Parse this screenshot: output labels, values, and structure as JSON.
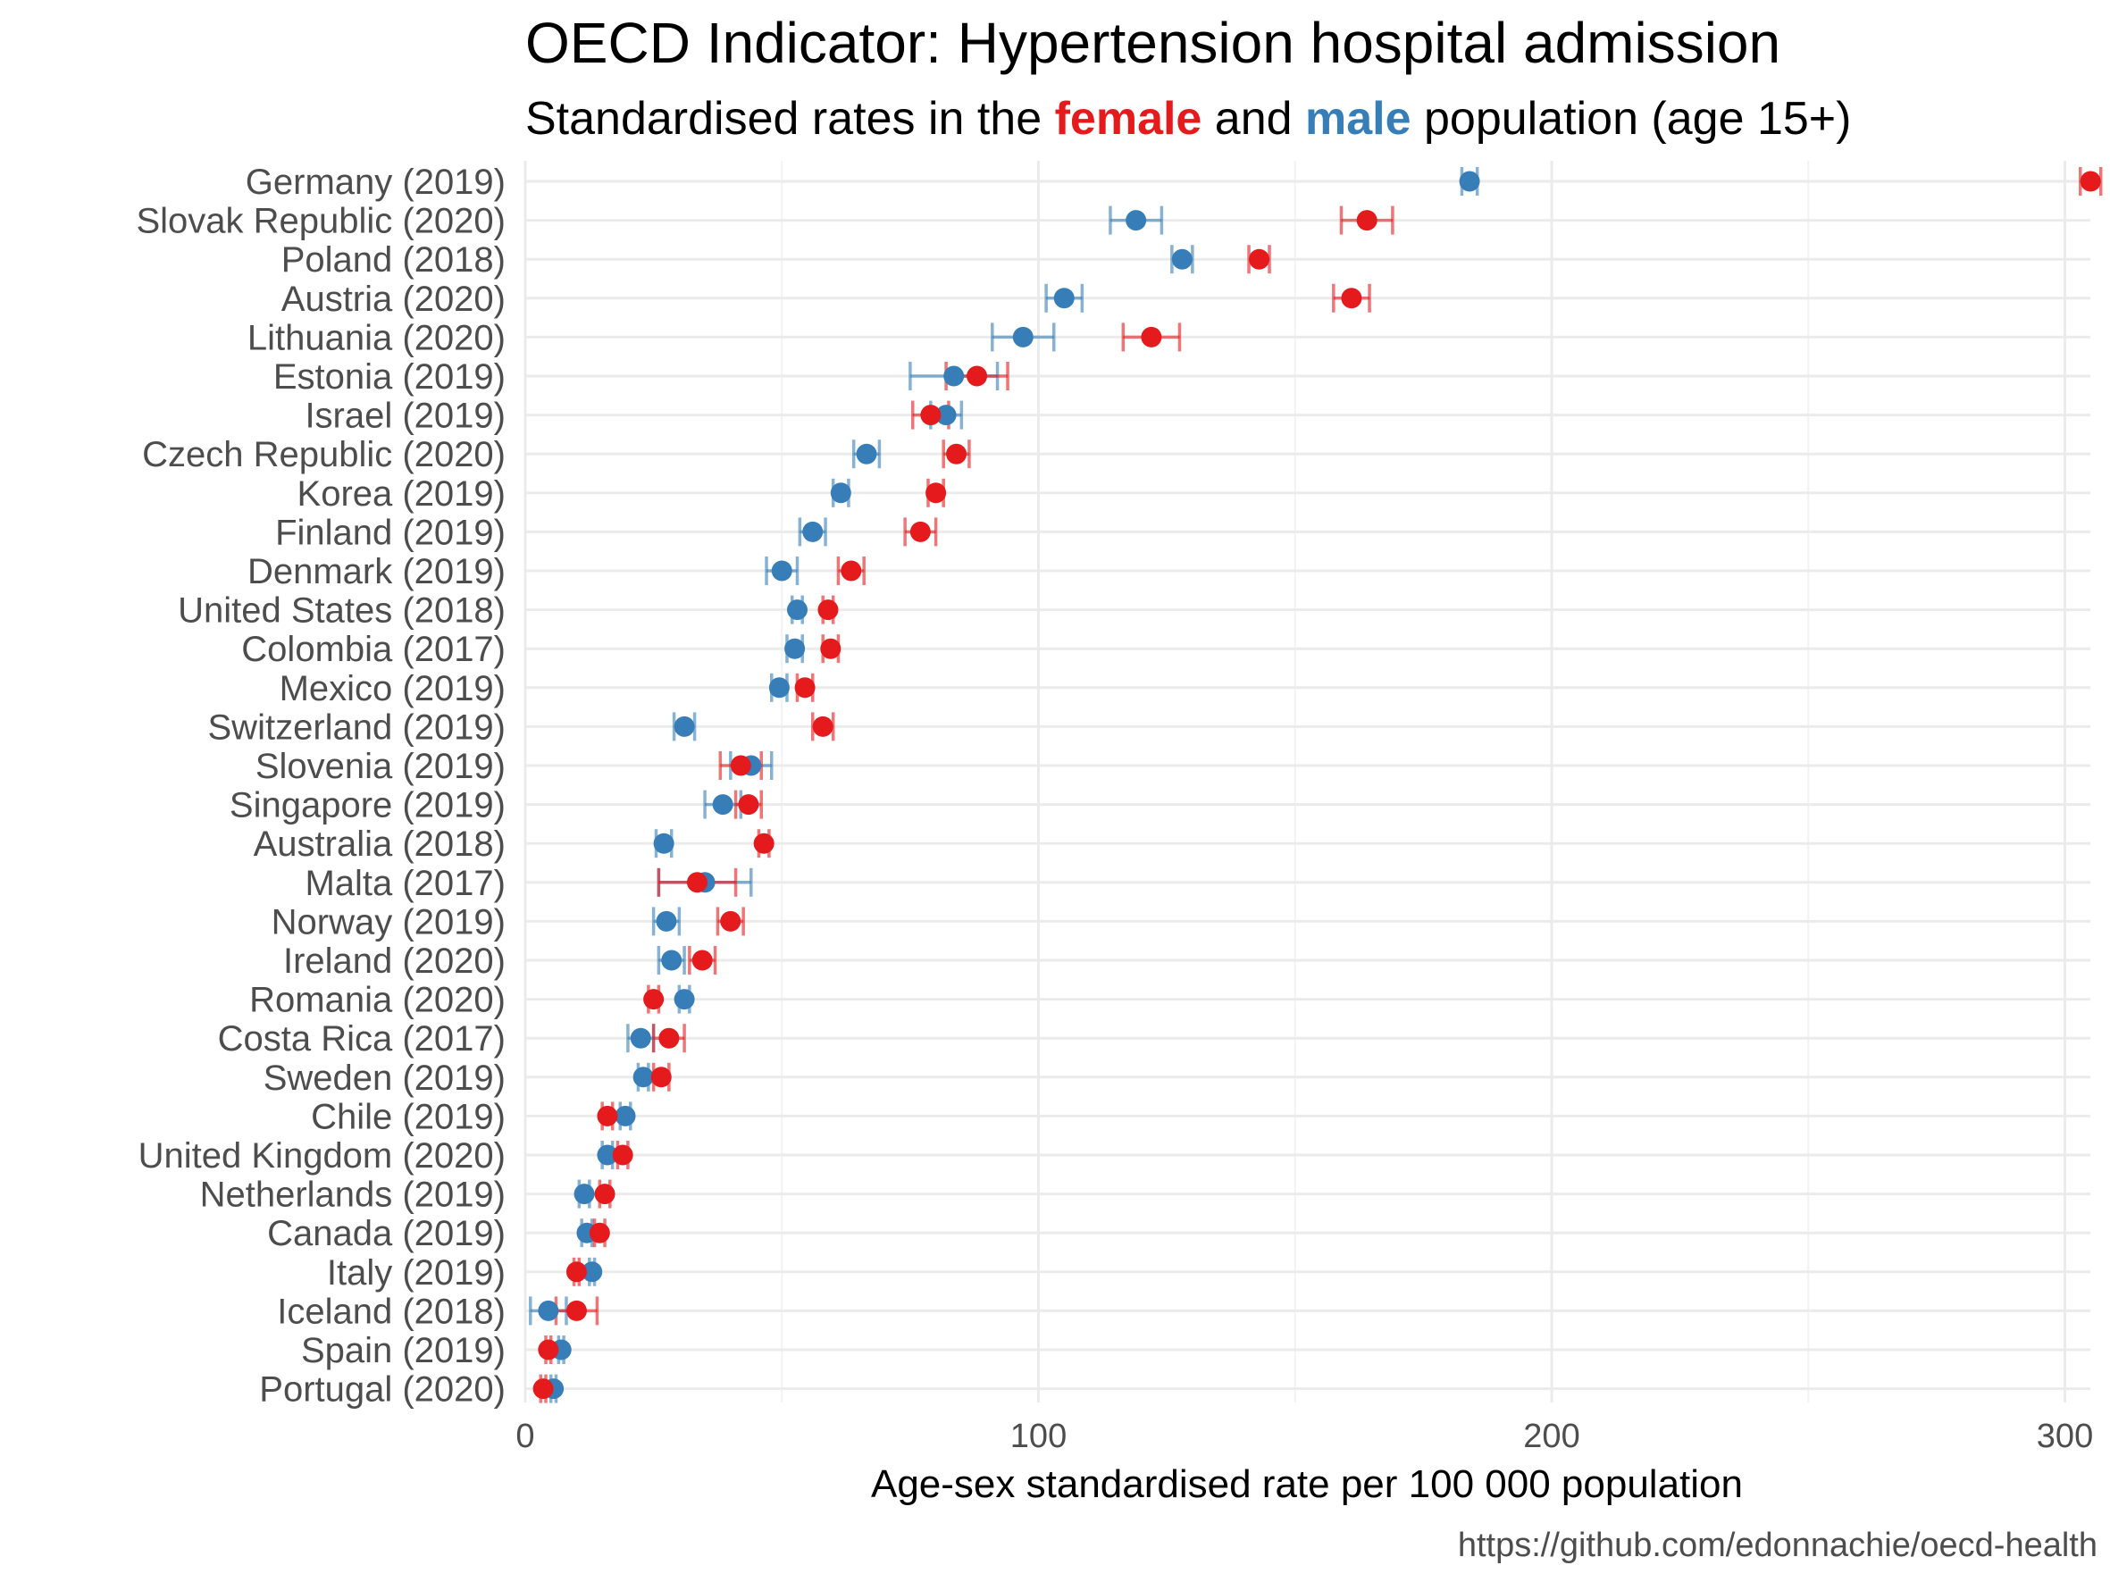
{
  "chart_data": {
    "type": "scatter",
    "title": "OECD Indicator: Hypertension hospital admission",
    "subtitle": {
      "prefix": "Standardised rates in the ",
      "female": "female",
      "middle": " and ",
      "male": "male",
      "suffix": " population (age 15+)"
    },
    "xlabel": "Age-sex standardised rate per 100 000 population",
    "ylabel": "",
    "xlim": [
      0,
      305
    ],
    "xticks": [
      0,
      100,
      200,
      300
    ],
    "grid": true,
    "caption": "https://github.com/edonnachie/oecd-health",
    "colors": {
      "female": "#e41a1c",
      "male": "#377eb8"
    },
    "series": [
      {
        "name": "female",
        "color": "#e41a1c"
      },
      {
        "name": "male",
        "color": "#377eb8"
      }
    ],
    "rows": [
      {
        "label": "Germany (2019)",
        "female": 305,
        "female_ci": [
          303,
          307
        ],
        "male": 184,
        "male_ci": [
          182.5,
          185.5
        ]
      },
      {
        "label": "Slovak Republic (2020)",
        "female": 164,
        "female_ci": [
          159,
          169
        ],
        "male": 119,
        "male_ci": [
          114,
          124
        ]
      },
      {
        "label": "Poland (2018)",
        "female": 143,
        "female_ci": [
          141,
          145
        ],
        "male": 128,
        "male_ci": [
          126,
          130
        ]
      },
      {
        "label": "Austria (2020)",
        "female": 161,
        "female_ci": [
          157.5,
          164.5
        ],
        "male": 105,
        "male_ci": [
          101.5,
          108.5
        ]
      },
      {
        "label": "Lithuania (2020)",
        "female": 122,
        "female_ci": [
          116.5,
          127.5
        ],
        "male": 97,
        "male_ci": [
          91,
          103
        ]
      },
      {
        "label": "Estonia (2019)",
        "female": 88,
        "female_ci": [
          82,
          94
        ],
        "male": 83.5,
        "male_ci": [
          75,
          92
        ]
      },
      {
        "label": "Israel (2019)",
        "female": 79,
        "female_ci": [
          75.5,
          82.5
        ],
        "male": 82,
        "male_ci": [
          79,
          85
        ]
      },
      {
        "label": "Czech Republic (2020)",
        "female": 84,
        "female_ci": [
          81.5,
          86.5
        ],
        "male": 66.5,
        "male_ci": [
          64,
          69
        ]
      },
      {
        "label": "Korea (2019)",
        "female": 80,
        "female_ci": [
          78.5,
          81.5
        ],
        "male": 61.5,
        "male_ci": [
          60,
          63
        ]
      },
      {
        "label": "Finland (2019)",
        "female": 77,
        "female_ci": [
          74,
          80
        ],
        "male": 56,
        "male_ci": [
          53.5,
          58.5
        ]
      },
      {
        "label": "Denmark (2019)",
        "female": 63.5,
        "female_ci": [
          61,
          66
        ],
        "male": 50,
        "male_ci": [
          47,
          53
        ]
      },
      {
        "label": "United States (2018)",
        "female": 59,
        "female_ci": [
          58,
          60
        ],
        "male": 53,
        "male_ci": [
          52,
          54
        ]
      },
      {
        "label": "Colombia (2017)",
        "female": 59.5,
        "female_ci": [
          58,
          61
        ],
        "male": 52.5,
        "male_ci": [
          51,
          54
        ]
      },
      {
        "label": "Mexico (2019)",
        "female": 54.5,
        "female_ci": [
          53,
          56
        ],
        "male": 49.5,
        "male_ci": [
          48,
          51
        ]
      },
      {
        "label": "Switzerland (2019)",
        "female": 58,
        "female_ci": [
          56,
          60
        ],
        "male": 31,
        "male_ci": [
          29,
          33
        ]
      },
      {
        "label": "Slovenia (2019)",
        "female": 42,
        "female_ci": [
          38,
          46
        ],
        "male": 44,
        "male_ci": [
          40,
          48
        ]
      },
      {
        "label": "Singapore (2019)",
        "female": 43.5,
        "female_ci": [
          41,
          46
        ],
        "male": 38.5,
        "male_ci": [
          35,
          42
        ]
      },
      {
        "label": "Australia (2018)",
        "female": 46.5,
        "female_ci": [
          45.5,
          47.5
        ],
        "male": 27,
        "male_ci": [
          25.5,
          28.5
        ]
      },
      {
        "label": "Malta (2017)",
        "female": 33.5,
        "female_ci": [
          26,
          41
        ],
        "male": 35,
        "male_ci": [
          26,
          44
        ]
      },
      {
        "label": "Norway (2019)",
        "female": 40,
        "female_ci": [
          37.5,
          42.5
        ],
        "male": 27.5,
        "male_ci": [
          25,
          30
        ]
      },
      {
        "label": "Ireland (2020)",
        "female": 34.5,
        "female_ci": [
          32,
          37
        ],
        "male": 28.5,
        "male_ci": [
          26,
          31
        ]
      },
      {
        "label": "Romania (2020)",
        "female": 25,
        "female_ci": [
          24,
          26
        ],
        "male": 31,
        "male_ci": [
          30,
          32
        ]
      },
      {
        "label": "Costa Rica (2017)",
        "female": 28,
        "female_ci": [
          25,
          31
        ],
        "male": 22.5,
        "male_ci": [
          20,
          25
        ]
      },
      {
        "label": "Sweden (2019)",
        "female": 26.5,
        "female_ci": [
          25,
          28
        ],
        "male": 23,
        "male_ci": [
          22,
          24
        ]
      },
      {
        "label": "Chile (2019)",
        "female": 16,
        "female_ci": [
          15,
          17
        ],
        "male": 19.5,
        "male_ci": [
          18.5,
          20.5
        ]
      },
      {
        "label": "United Kingdom (2020)",
        "female": 19,
        "female_ci": [
          18,
          20
        ],
        "male": 16,
        "male_ci": [
          15,
          17
        ]
      },
      {
        "label": "Netherlands (2019)",
        "female": 15.5,
        "female_ci": [
          14.5,
          16.5
        ],
        "male": 11.5,
        "male_ci": [
          10.5,
          12.5
        ]
      },
      {
        "label": "Canada (2019)",
        "female": 14.5,
        "female_ci": [
          13.5,
          15.5
        ],
        "male": 12,
        "male_ci": [
          11,
          13
        ]
      },
      {
        "label": "Italy (2019)",
        "female": 10,
        "female_ci": [
          9.5,
          10.5
        ],
        "male": 13,
        "male_ci": [
          12.5,
          13.5
        ]
      },
      {
        "label": "Iceland (2018)",
        "female": 10,
        "female_ci": [
          6,
          14
        ],
        "male": 4.5,
        "male_ci": [
          1,
          8
        ]
      },
      {
        "label": "Spain (2019)",
        "female": 4.5,
        "female_ci": [
          4,
          5
        ],
        "male": 7,
        "male_ci": [
          6.5,
          7.5
        ]
      },
      {
        "label": "Portugal (2020)",
        "female": 3.5,
        "female_ci": [
          3,
          4
        ],
        "male": 5.5,
        "male_ci": [
          5,
          6
        ]
      }
    ]
  }
}
